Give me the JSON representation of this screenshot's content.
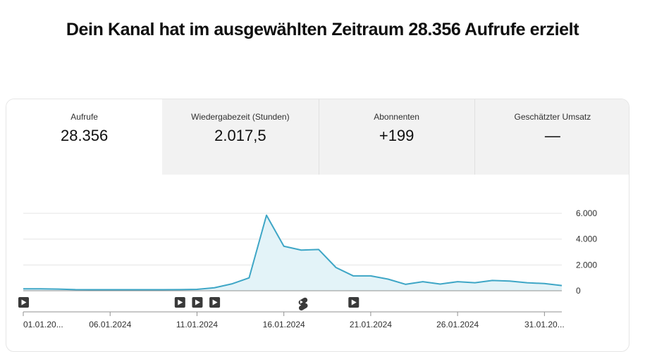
{
  "headline": "Dein Kanal hat im ausgewählten Zeitraum 28.356 Aufrufe erzielt",
  "tabs": [
    {
      "label": "Aufrufe",
      "value": "28.356",
      "active": true
    },
    {
      "label": "Wiedergabezeit (Stunden)",
      "value": "2.017,5",
      "active": false
    },
    {
      "label": "Abonnenten",
      "value": "+199",
      "active": false
    },
    {
      "label": "Geschätzter Umsatz",
      "value": "—",
      "active": false
    }
  ],
  "colors": {
    "line": "#3ea6c6",
    "area": "#e3f3f8",
    "grid": "#e5e5e5",
    "axis": "#909090"
  },
  "chart_data": {
    "type": "area",
    "x_tick_labels": [
      "01.01.20...",
      "06.01.2024",
      "11.01.2024",
      "16.01.2024",
      "21.01.2024",
      "26.01.2024",
      "31.01.20..."
    ],
    "y_tick_labels": [
      "6.000",
      "4.000",
      "2.000",
      "0"
    ],
    "ylim": [
      0,
      6000
    ],
    "grid": true,
    "series": [
      {
        "dates": [
          "01.01.2024",
          "02.01.2024",
          "03.01.2024",
          "04.01.2024",
          "05.01.2024",
          "06.01.2024",
          "07.01.2024",
          "08.01.2024",
          "09.01.2024",
          "10.01.2024",
          "11.01.2024",
          "12.01.2024",
          "13.01.2024",
          "14.01.2024",
          "15.01.2024",
          "16.01.2024",
          "17.01.2024",
          "18.01.2024",
          "19.01.2024",
          "20.01.2024",
          "21.01.2024",
          "22.01.2024",
          "23.01.2024",
          "24.01.2024",
          "25.01.2024",
          "26.01.2024",
          "27.01.2024",
          "28.01.2024",
          "29.01.2024",
          "30.01.2024",
          "31.01.2024",
          "01.02.2024"
        ],
        "values": [
          150,
          150,
          130,
          90,
          80,
          80,
          80,
          80,
          80,
          90,
          110,
          230,
          530,
          1000,
          5850,
          3450,
          3150,
          3200,
          1800,
          1150,
          1150,
          900,
          500,
          700,
          520,
          700,
          620,
          800,
          750,
          620,
          560,
          400
        ]
      }
    ],
    "markers": [
      {
        "date": "01.01.2024",
        "icon": "video-play-icon"
      },
      {
        "date": "10.01.2024",
        "icon": "video-play-icon"
      },
      {
        "date": "11.01.2024",
        "icon": "video-play-icon"
      },
      {
        "date": "12.01.2024",
        "icon": "video-play-icon"
      },
      {
        "date": "17.01.2024",
        "icon": "shorts-icon"
      },
      {
        "date": "20.01.2024",
        "icon": "video-play-icon"
      }
    ]
  }
}
